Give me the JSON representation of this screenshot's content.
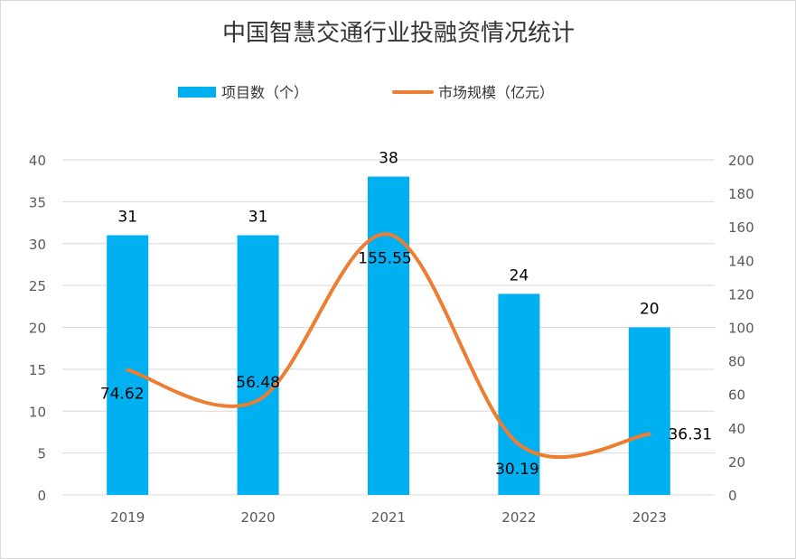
{
  "chart_data": {
    "type": "bar+line",
    "title": "中国智慧交通行业投融资情况统计",
    "categories": [
      "2019",
      "2020",
      "2021",
      "2022",
      "2023"
    ],
    "series": [
      {
        "name": "项目数（个）",
        "type": "bar",
        "axis": "left",
        "color": "#00B0F0",
        "values": [
          31,
          31,
          38,
          24,
          20
        ],
        "labels": [
          "31",
          "31",
          "38",
          "24",
          "20"
        ]
      },
      {
        "name": "市场规模（亿元）",
        "type": "line",
        "smooth": true,
        "axis": "right",
        "color": "#ED7D31",
        "values": [
          74.62,
          56.48,
          155.55,
          30.19,
          36.31
        ],
        "labels": [
          "74.62",
          "56.48",
          "155.55",
          "30.19",
          "36.31"
        ]
      }
    ],
    "y_left": {
      "range": [
        0,
        40
      ],
      "ticks": [
        "0",
        "5",
        "10",
        "15",
        "20",
        "25",
        "30",
        "35",
        "40"
      ]
    },
    "y_right": {
      "range": [
        0,
        200
      ],
      "ticks": [
        "0",
        "20",
        "40",
        "60",
        "80",
        "100",
        "120",
        "140",
        "160",
        "180",
        "200"
      ]
    },
    "grid": true,
    "legend": "top"
  }
}
